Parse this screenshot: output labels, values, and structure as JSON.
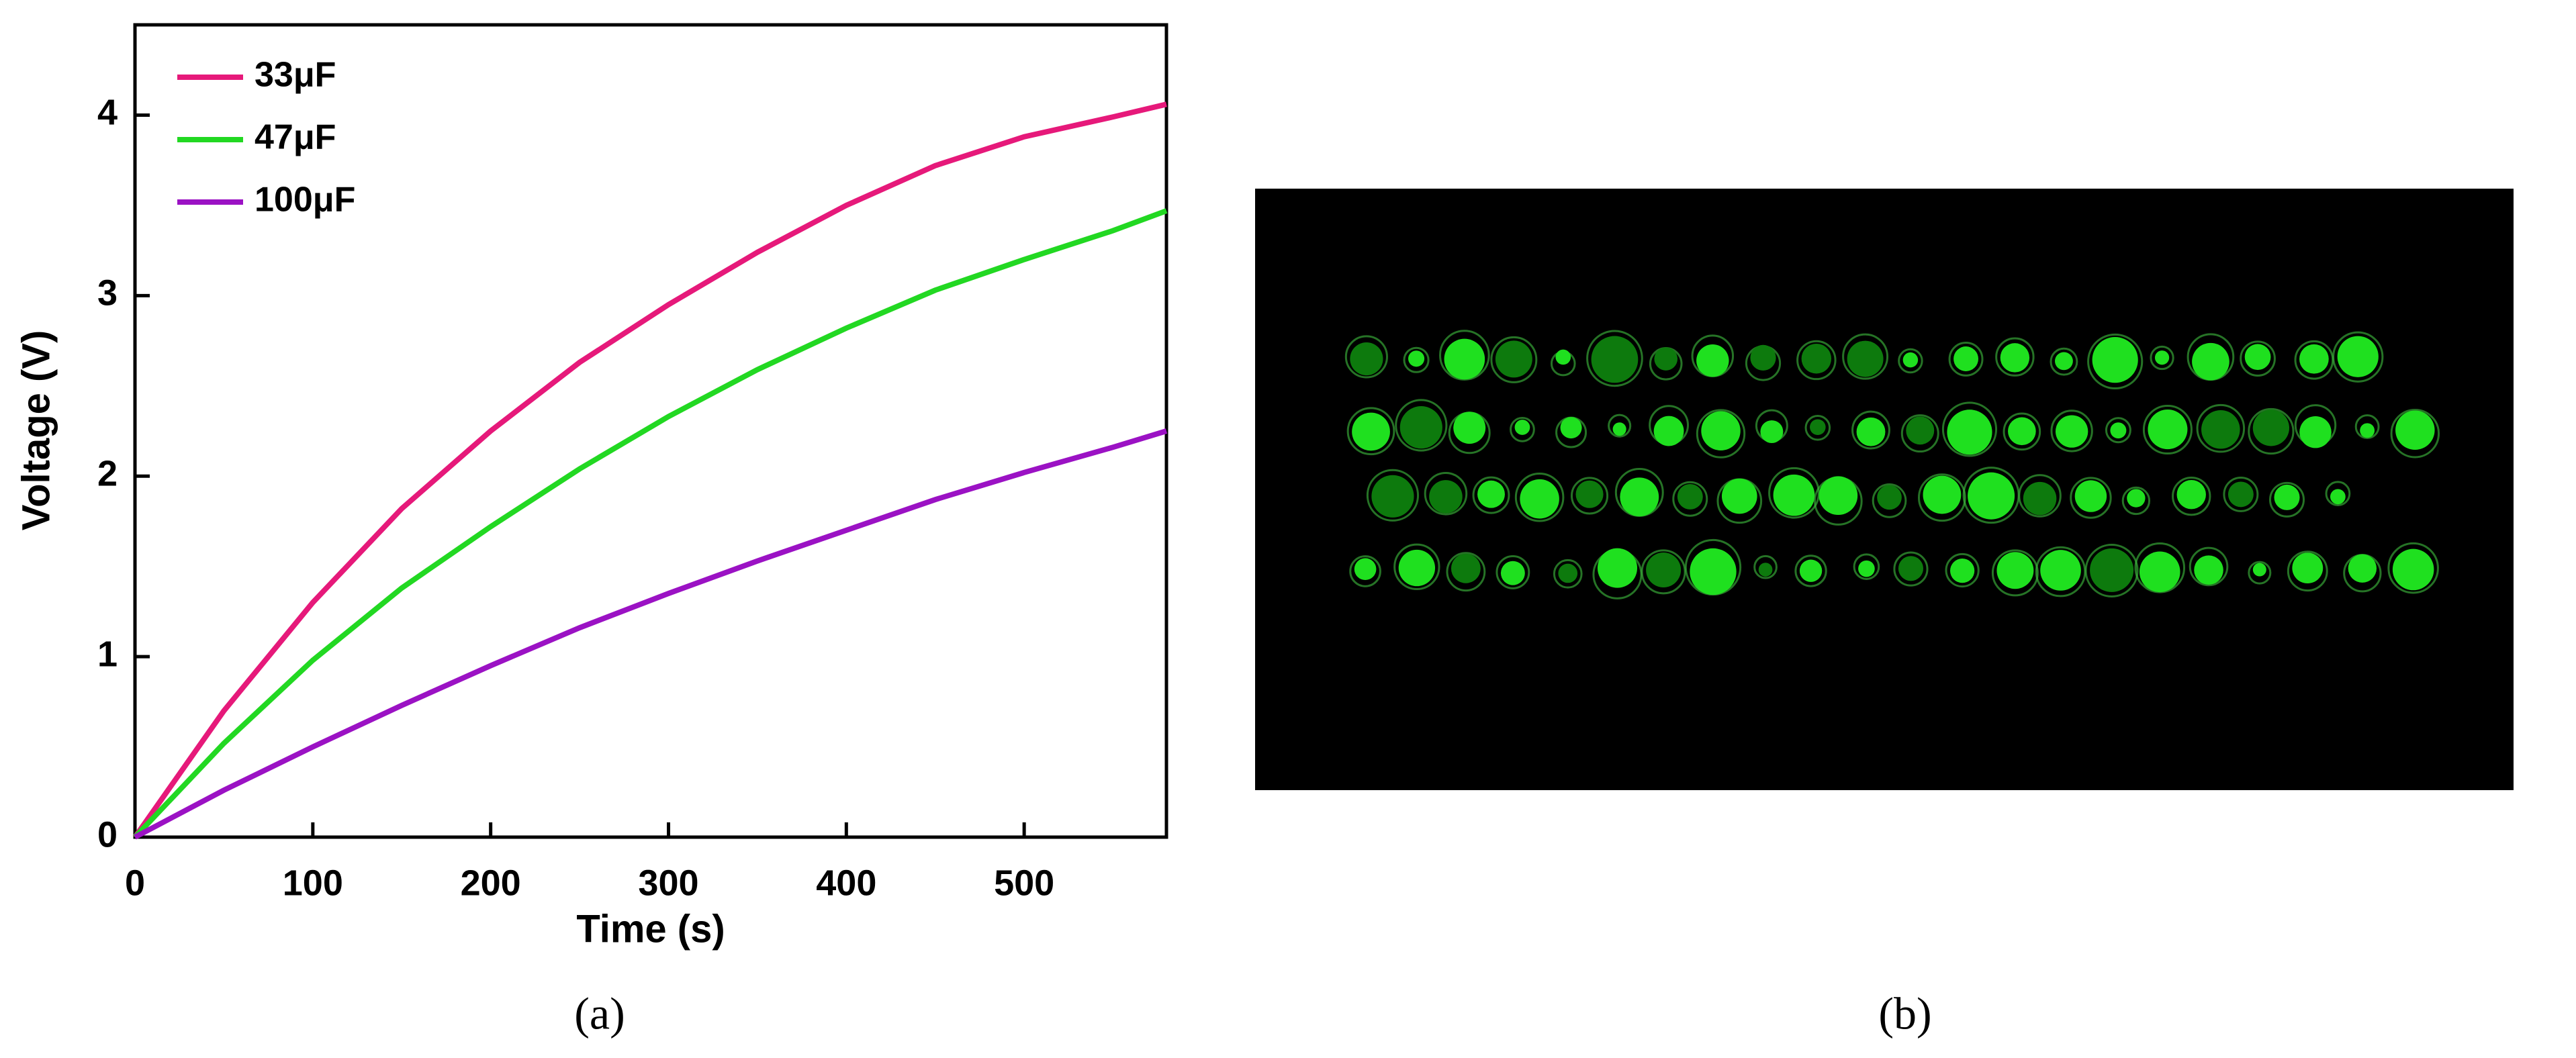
{
  "chart_data": {
    "type": "line",
    "xlabel": "Time (s)",
    "ylabel": "Voltage (V)",
    "x": [
      0,
      50,
      100,
      150,
      200,
      250,
      300,
      350,
      400,
      450,
      500,
      550,
      580
    ],
    "series": [
      {
        "name": "33μF",
        "color": "#e6197a",
        "values": [
          0,
          0.7,
          1.3,
          1.82,
          2.25,
          2.63,
          2.95,
          3.24,
          3.5,
          3.72,
          3.88,
          3.99,
          4.06
        ]
      },
      {
        "name": "47μF",
        "color": "#22d822",
        "values": [
          0,
          0.52,
          0.98,
          1.38,
          1.72,
          2.04,
          2.33,
          2.59,
          2.82,
          3.03,
          3.2,
          3.36,
          3.47
        ]
      },
      {
        "name": "100μF",
        "color": "#9b12c4",
        "values": [
          0,
          0.26,
          0.5,
          0.73,
          0.95,
          1.16,
          1.35,
          1.53,
          1.7,
          1.87,
          2.02,
          2.16,
          2.25
        ]
      }
    ],
    "xlim": [
      0,
      580
    ],
    "ylim": [
      0,
      4.5
    ],
    "xticks": [
      0,
      100,
      200,
      300,
      400,
      500
    ],
    "yticks": [
      0,
      1,
      2,
      3,
      4
    ],
    "legend": "upper-left"
  },
  "panel_labels": [
    "(a)",
    "(b)"
  ]
}
